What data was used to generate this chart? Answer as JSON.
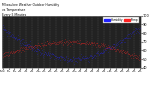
{
  "background_color": "#ffffff",
  "plot_bg_color": "#222222",
  "grid_color": "#555555",
  "blue_color": "#2222ff",
  "red_color": "#ff2222",
  "legend_blue_label": "Humidity",
  "legend_red_label": "Temp",
  "ylim": [
    40,
    100
  ],
  "yticks": [
    40,
    50,
    60,
    70,
    80,
    90,
    100
  ],
  "n_points": 288,
  "seed": 99,
  "title_text": "Milwaukee Weather Outdoor Humidity",
  "subtitle1": "vs Temperature",
  "subtitle2": "Every 5 Minutes"
}
